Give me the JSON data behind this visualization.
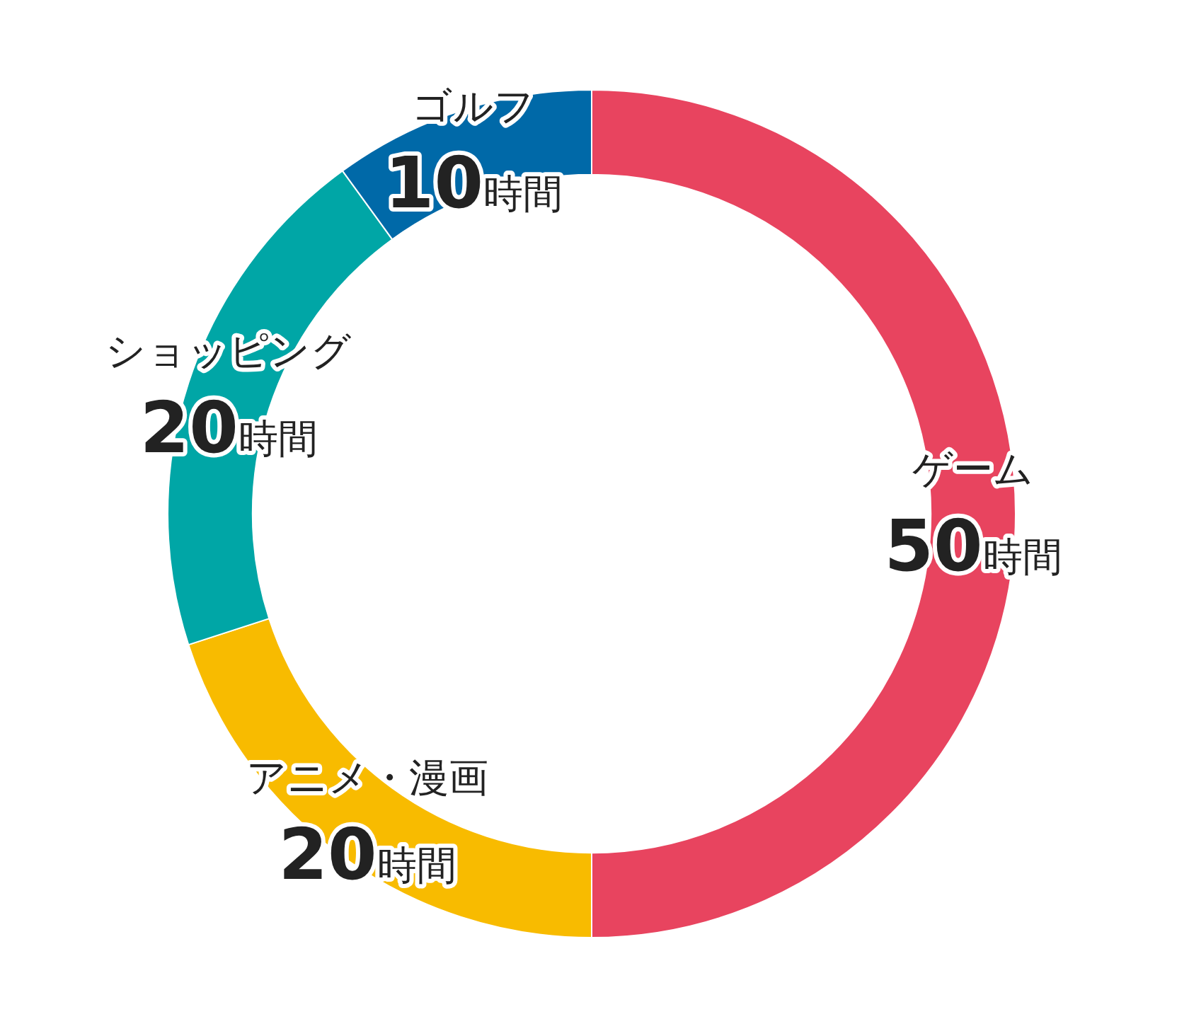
{
  "chart_data": {
    "type": "donut",
    "categories": [
      "ゲーム",
      "アニメ・漫画",
      "ショッピング",
      "ゴルフ"
    ],
    "values": [
      50,
      20,
      20,
      10
    ],
    "colors": [
      "#e8445f",
      "#f8bb00",
      "#00a6a6",
      "#0069a8"
    ],
    "value_labels": [
      "50時間",
      "20時間",
      "20時間",
      "10時間"
    ],
    "legend": false
  }
}
